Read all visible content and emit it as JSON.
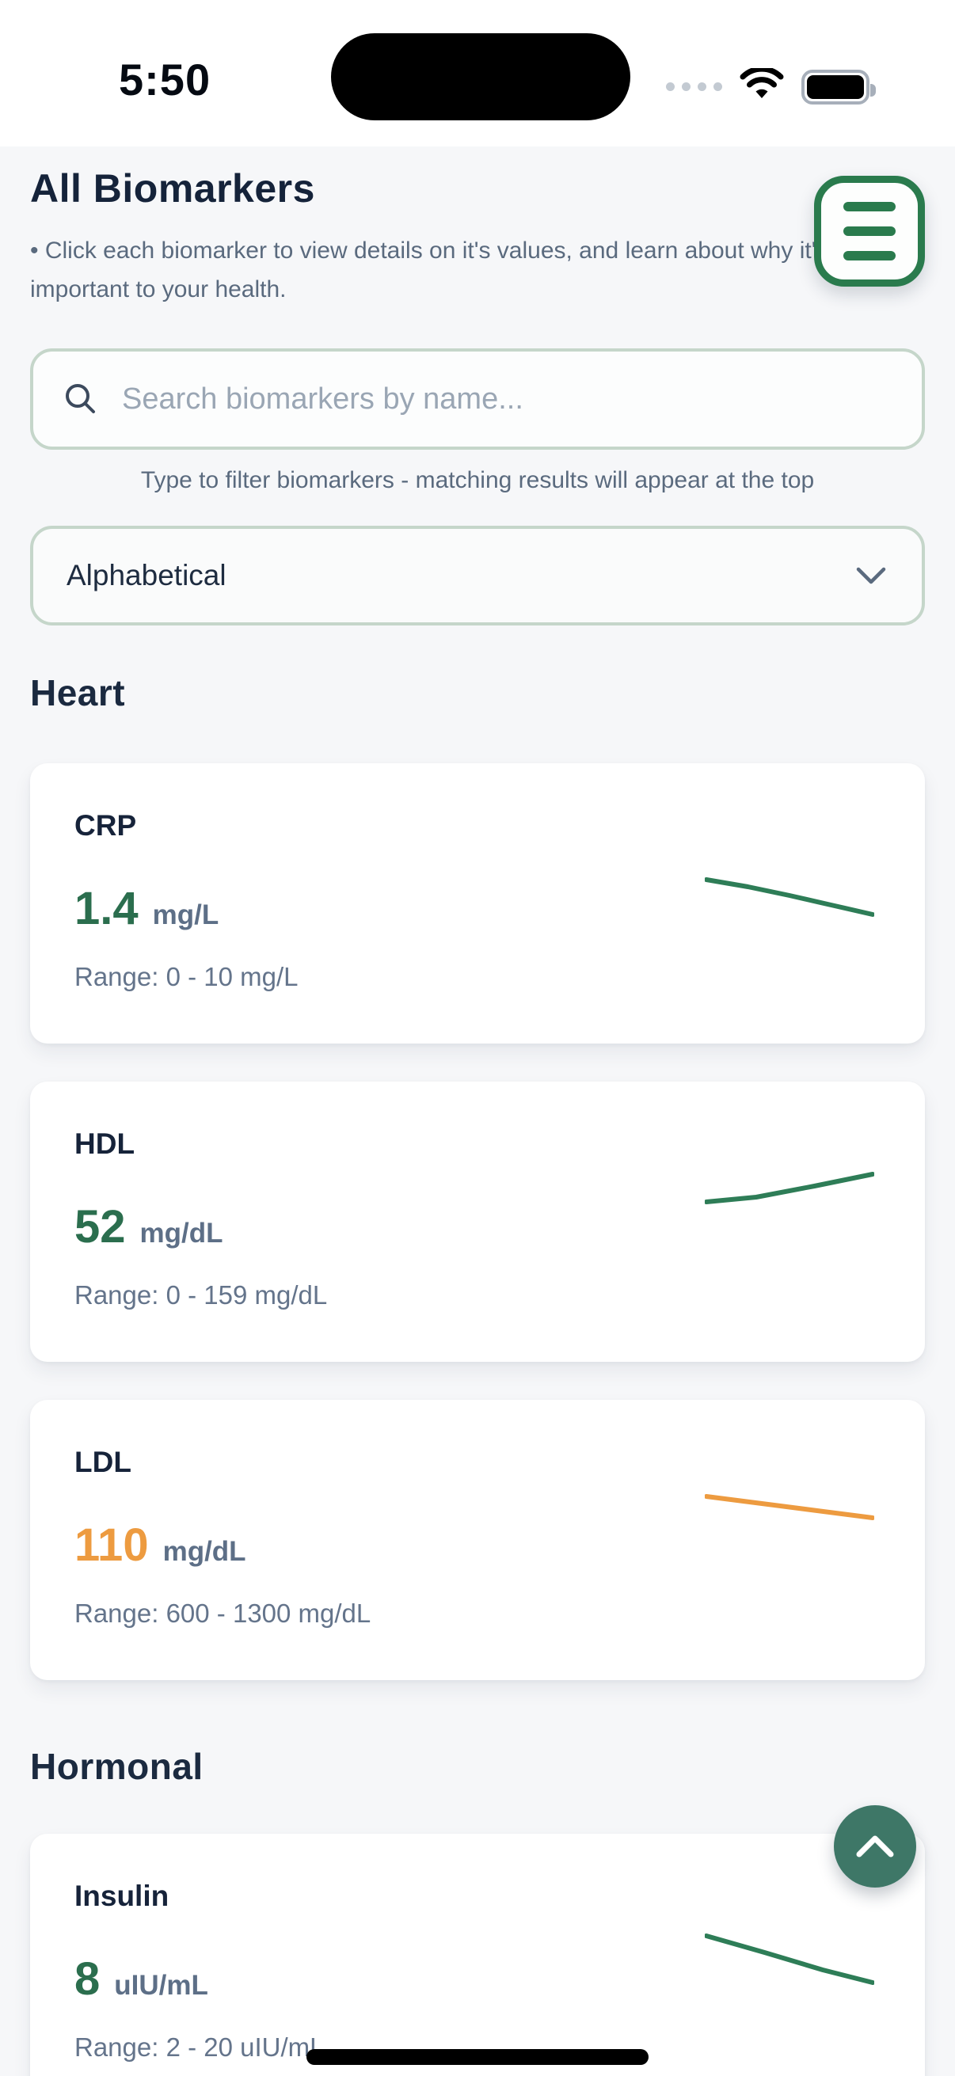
{
  "status_bar": {
    "time": "5:50"
  },
  "header": {
    "title": "All Biomarkers",
    "description": "• Click each biomarker to view details on it's values, and learn about why it's important to your health."
  },
  "search": {
    "placeholder": "Search biomarkers by name...",
    "helper": "Type to filter biomarkers - matching results will appear at the top"
  },
  "sort": {
    "selected": "Alphabetical"
  },
  "sections": [
    {
      "name": "Heart",
      "biomarkers": [
        {
          "name": "CRP",
          "value": "1.4",
          "unit": "mg/L",
          "range": "Range: 0 - 10 mg/L",
          "value_color": "#2b6e4e",
          "sparkline": {
            "color": "#2e7d57",
            "trend": "down",
            "points": [
              [
                0,
                7
              ],
              [
                0.25,
                16
              ],
              [
                0.5,
                27
              ],
              [
                0.75,
                39
              ],
              [
                1,
                51
              ]
            ]
          }
        },
        {
          "name": "HDL",
          "value": "52",
          "unit": "mg/dL",
          "range": "Range: 0 - 159 mg/dL",
          "value_color": "#2b6e4e",
          "sparkline": {
            "color": "#2e7d57",
            "trend": "up",
            "points": [
              [
                0,
                42
              ],
              [
                0.3,
                36
              ],
              [
                0.65,
                22
              ],
              [
                1,
                7
              ]
            ]
          }
        },
        {
          "name": "LDL",
          "value": "110",
          "unit": "mg/dL",
          "range": "Range: 600 - 1300 mg/dL",
          "value_color": "#ed9b40",
          "sparkline": {
            "color": "#ed9b40",
            "trend": "down",
            "points": [
              [
                0,
                6
              ],
              [
                1,
                33
              ]
            ]
          }
        }
      ]
    },
    {
      "name": "Hormonal",
      "biomarkers": [
        {
          "name": "Insulin",
          "value": "8",
          "unit": "uIU/mL",
          "range": "Range: 2 - 20 uIU/mL",
          "value_color": "#2b6e4e",
          "sparkline": {
            "color": "#2e7d57",
            "trend": "down",
            "points": [
              [
                0,
                5
              ],
              [
                0.35,
                26
              ],
              [
                0.7,
                48
              ],
              [
                1,
                64
              ]
            ]
          }
        }
      ]
    }
  ],
  "colors": {
    "accent_green": "#2a7b4d",
    "scroll_button_green": "#3e7767",
    "value_green": "#2b6e4e",
    "value_orange": "#ed9b40",
    "border_sage": "#c5d6ca",
    "text_navy": "#15233a",
    "text_slate": "#5a6a7e"
  }
}
